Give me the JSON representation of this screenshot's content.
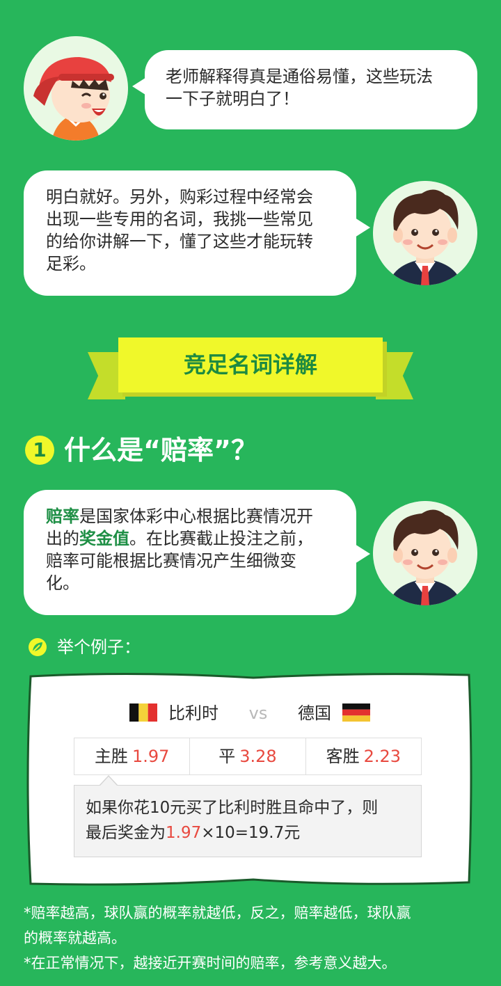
{
  "dialog": {
    "student_line1": "老师解释得真是通俗易懂，这些玩法",
    "student_line2": "一下子就明白了！",
    "teacher_line1": "明白就好。另外，购彩过程中经常会",
    "teacher_line2": "出现一些专用的名词，我挑一些常见",
    "teacher_line3": "的给你讲解一下，懂了这些才能玩转",
    "teacher_line4": "足彩。"
  },
  "banner": {
    "title": "竞足名词详解"
  },
  "section1": {
    "number": "1",
    "title": "什么是“赔率”？",
    "explain_bold1": "赔率",
    "explain_part1": "是国家体彩中心根据比赛情况开",
    "explain_part2a": "出的",
    "explain_bold2": "奖金值",
    "explain_part2b": "。在比赛截止投注之前，",
    "explain_part3": "赔率可能根据比赛情况产生细微变",
    "explain_part4": "化。"
  },
  "example": {
    "label": "举个例子：",
    "team_home": "比利时",
    "vs": "vs",
    "team_away": "德国",
    "odds": [
      {
        "label": "主胜",
        "value": "1.97"
      },
      {
        "label": "平",
        "value": "3.28"
      },
      {
        "label": "客胜",
        "value": "2.23"
      }
    ],
    "calc_line1": "如果你花10元买了比利时胜且命中了，则",
    "calc_line2_prefix": "最后奖金为",
    "calc_line2_value": "1.97",
    "calc_line2_suffix": "×10=19.7元"
  },
  "notes": {
    "note1": "*赔率越高，球队赢的概率就越低，反之，赔率越低，球队赢",
    "note1b": "的概率就越高。",
    "note2": "*在正常情况下，越接近开赛时间的赔率，参考意义越大。"
  },
  "colors": {
    "background": "#27b65b",
    "accent_yellow": "#f0f82a",
    "highlight_green": "#1d8a41",
    "odds_red": "#e8493f"
  },
  "icons": {
    "student": "student-avatar",
    "teacher": "teacher-avatar",
    "leaf": "leaf-icon",
    "flag_home": "belgium-flag-icon",
    "flag_away": "germany-flag-icon"
  }
}
